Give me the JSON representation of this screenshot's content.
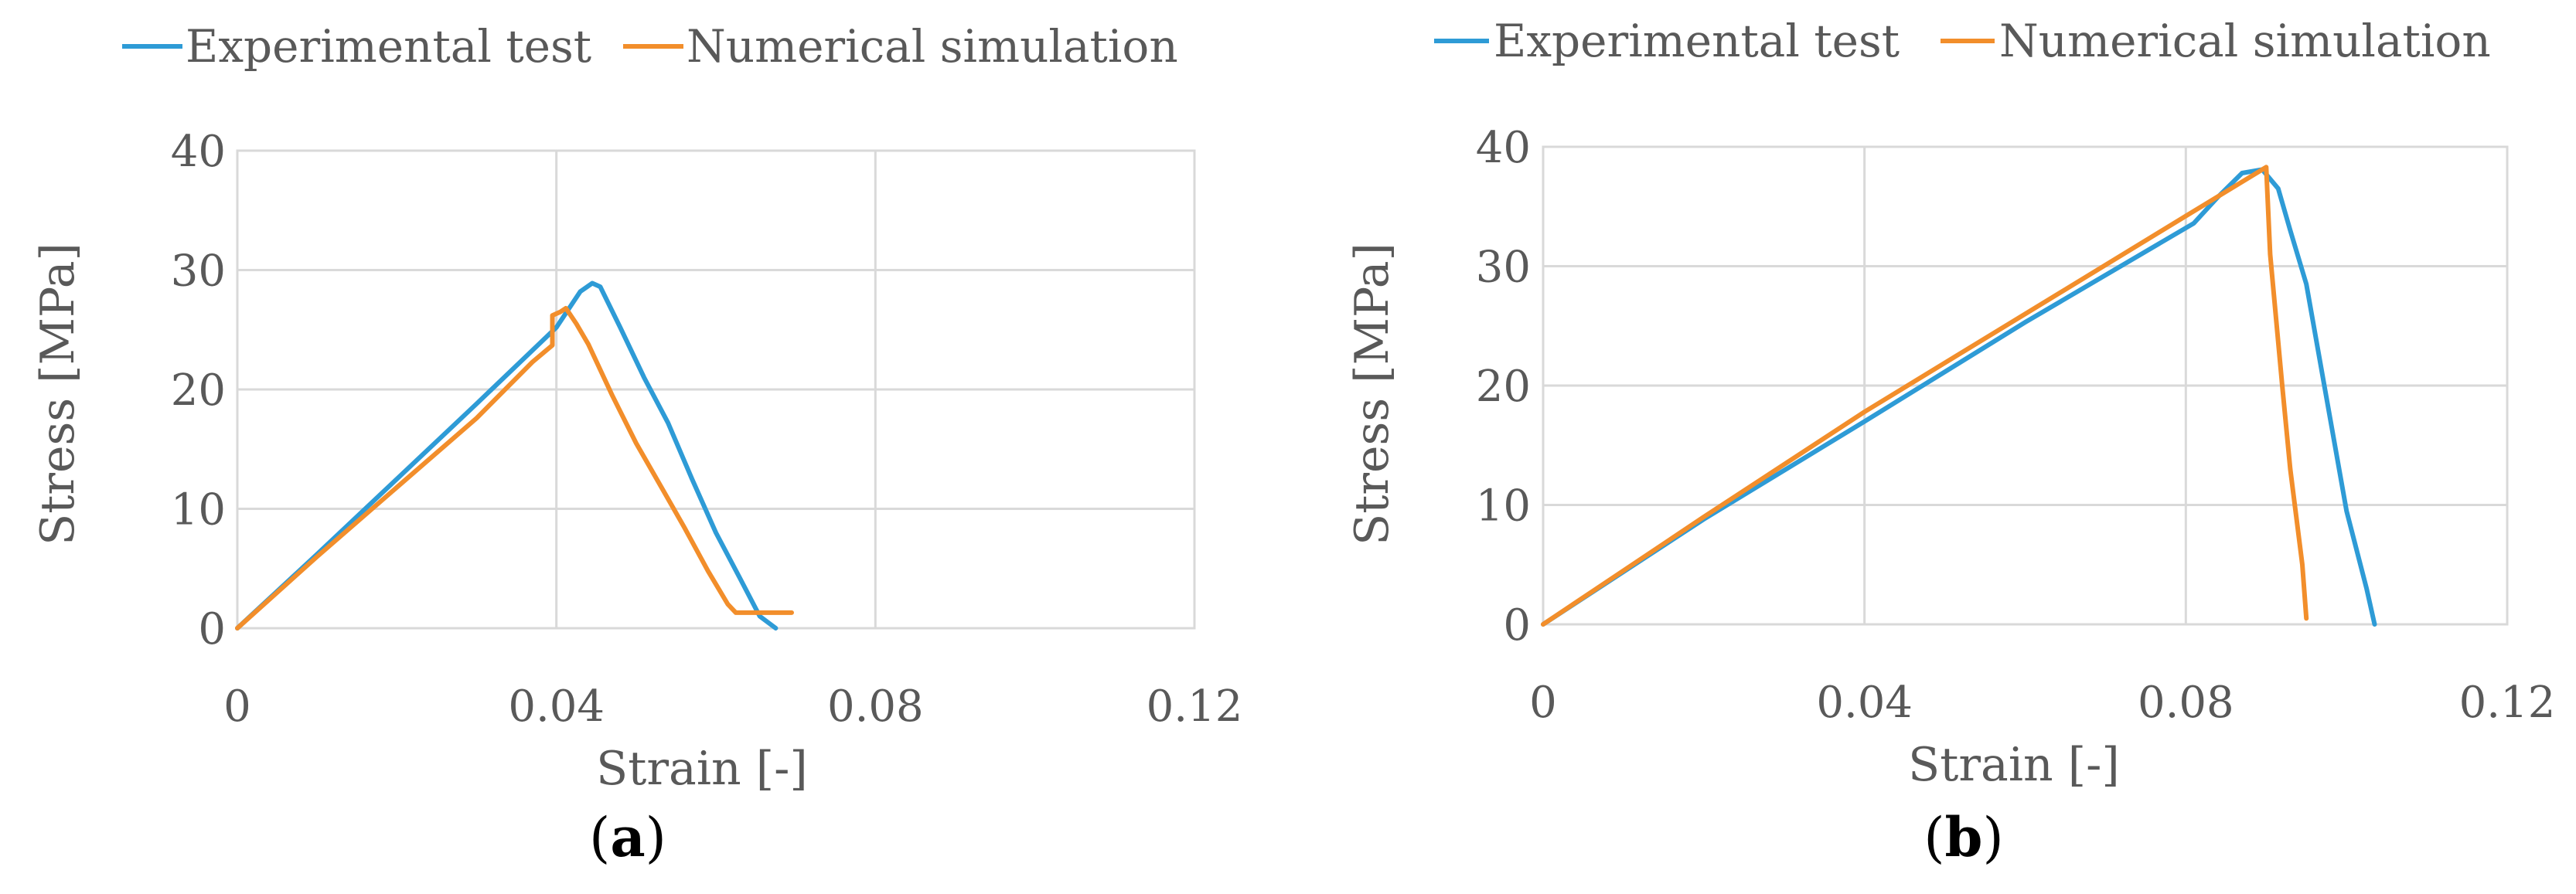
{
  "chart_data": [
    {
      "type": "line",
      "caption_letter": "a",
      "xlabel": "Strain [-]",
      "ylabel": "Stress [MPa]",
      "xlim": [
        0,
        0.12
      ],
      "ylim": [
        0,
        40
      ],
      "xticks": [
        "0",
        "0.04",
        "0.08",
        "0.12"
      ],
      "yticks": [
        "0",
        "10",
        "20",
        "30",
        "40"
      ],
      "xtick_values": [
        0,
        0.04,
        0.08,
        0.12
      ],
      "ytick_values": [
        0,
        10,
        20,
        30,
        40
      ],
      "legend": {
        "position": "top"
      },
      "series": [
        {
          "name": "Experimental test",
          "color": "#2e9bd6",
          "points": [
            [
              0,
              0
            ],
            [
              0.01,
              6.2
            ],
            [
              0.02,
              12.5
            ],
            [
              0.03,
              18.8
            ],
            [
              0.04,
              25.2
            ],
            [
              0.043,
              28.2
            ],
            [
              0.0445,
              28.9
            ],
            [
              0.0455,
              28.6
            ],
            [
              0.048,
              25.2
            ],
            [
              0.051,
              21.0
            ],
            [
              0.054,
              17.2
            ],
            [
              0.057,
              12.5
            ],
            [
              0.06,
              8.0
            ],
            [
              0.063,
              4.2
            ],
            [
              0.0655,
              1.0
            ],
            [
              0.0675,
              0
            ]
          ]
        },
        {
          "name": "Numerical simulation",
          "color": "#f28e2b",
          "points": [
            [
              0,
              0
            ],
            [
              0.01,
              6.0
            ],
            [
              0.02,
              11.8
            ],
            [
              0.03,
              17.6
            ],
            [
              0.037,
              22.3
            ],
            [
              0.0395,
              23.7
            ],
            [
              0.0395,
              26.2
            ],
            [
              0.0405,
              26.5
            ],
            [
              0.0412,
              26.8
            ],
            [
              0.0425,
              25.5
            ],
            [
              0.044,
              23.8
            ],
            [
              0.047,
              19.5
            ],
            [
              0.05,
              15.5
            ],
            [
              0.053,
              12.0
            ],
            [
              0.056,
              8.5
            ],
            [
              0.059,
              4.8
            ],
            [
              0.0615,
              2.0
            ],
            [
              0.0625,
              1.3
            ],
            [
              0.064,
              1.3
            ],
            [
              0.0695,
              1.3
            ]
          ]
        }
      ]
    },
    {
      "type": "line",
      "caption_letter": "b",
      "xlabel": "Strain [-]",
      "ylabel": "Stress [MPa]",
      "xlim": [
        0,
        0.12
      ],
      "ylim": [
        0,
        40
      ],
      "xticks": [
        "0",
        "0.04",
        "0.08",
        "0.12"
      ],
      "yticks": [
        "0",
        "10",
        "20",
        "30",
        "40"
      ],
      "xtick_values": [
        0,
        0.04,
        0.08,
        0.12
      ],
      "ytick_values": [
        0,
        10,
        20,
        30,
        40
      ],
      "legend": {
        "position": "top"
      },
      "series": [
        {
          "name": "Experimental test",
          "color": "#2e9bd6",
          "points": [
            [
              0,
              0
            ],
            [
              0.02,
              8.8
            ],
            [
              0.04,
              17.0
            ],
            [
              0.06,
              25.3
            ],
            [
              0.081,
              33.6
            ],
            [
              0.084,
              35.8
            ],
            [
              0.087,
              37.8
            ],
            [
              0.0895,
              38.1
            ],
            [
              0.0915,
              36.5
            ],
            [
              0.093,
              33.0
            ],
            [
              0.095,
              28.5
            ],
            [
              0.0975,
              19.0
            ],
            [
              0.1,
              9.5
            ],
            [
              0.1025,
              3.0
            ],
            [
              0.1035,
              0
            ]
          ]
        },
        {
          "name": "Numerical simulation",
          "color": "#f28e2b",
          "points": [
            [
              0,
              0
            ],
            [
              0.02,
              9.0
            ],
            [
              0.04,
              17.8
            ],
            [
              0.06,
              26.0
            ],
            [
              0.08,
              34.2
            ],
            [
              0.09,
              38.3
            ],
            [
              0.0905,
              31.0
            ],
            [
              0.092,
              20.0
            ],
            [
              0.093,
              13.0
            ],
            [
              0.0945,
              5.0
            ],
            [
              0.095,
              0.5
            ]
          ]
        }
      ]
    }
  ]
}
